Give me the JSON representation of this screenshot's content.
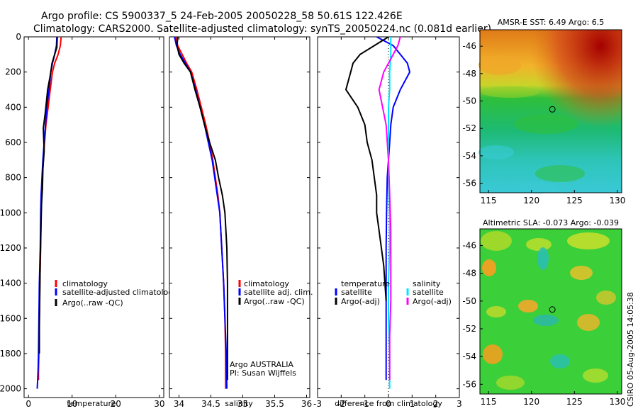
{
  "header": {
    "line1": "Argo profile: CS 5900337_5 24-Feb-2005 20050228_58 50.61S 122.426E",
    "line2": "Climatology: CARS2000. Satellite-adjusted climatology: synTS_20050224.nc (0.081d earlier)"
  },
  "chart_data": [
    {
      "type": "line",
      "name": "temperature-profile",
      "xlabel": "temperature",
      "ylabel": "",
      "xlim": [
        -1,
        31
      ],
      "ylim": [
        0,
        2050
      ],
      "y_reversed": true,
      "xticks": [
        0,
        10,
        20,
        30
      ],
      "yticks": [
        0,
        200,
        400,
        600,
        800,
        1000,
        1200,
        1400,
        1600,
        1800,
        2000
      ],
      "series": [
        {
          "name": "climatology",
          "color": "#ff0000",
          "x": [
            7.5,
            7.3,
            6.8,
            6.0,
            5.5,
            5.0,
            4.5,
            4.0,
            3.7,
            3.4,
            3.2,
            3.0,
            2.9,
            2.8,
            2.6,
            2.5,
            2.4,
            2.3,
            2.3
          ],
          "y": [
            0,
            50,
            100,
            150,
            200,
            300,
            400,
            500,
            600,
            700,
            800,
            900,
            1000,
            1200,
            1400,
            1600,
            1800,
            1900,
            1950
          ]
        },
        {
          "name": "satellite-adjusted climatology",
          "color": "#0000ff",
          "x": [
            6.5,
            6.4,
            6.0,
            5.5,
            5.1,
            4.7,
            4.2,
            3.9,
            3.6,
            3.3,
            3.1,
            2.9,
            2.8,
            2.7,
            2.5,
            2.4,
            2.3,
            2.2,
            2.1,
            2.0
          ],
          "y": [
            0,
            50,
            100,
            150,
            200,
            300,
            400,
            500,
            600,
            700,
            800,
            900,
            1000,
            1200,
            1400,
            1600,
            1800,
            1900,
            1950,
            2000
          ]
        },
        {
          "name": "Argo(..raw -QC)",
          "color": "#000000",
          "x": [
            6.6,
            6.5,
            6.0,
            5.4,
            5.0,
            4.4,
            3.9,
            3.4,
            3.6,
            3.3,
            3.2,
            3.0,
            2.9,
            2.7,
            2.6,
            2.5,
            2.5
          ],
          "y": [
            0,
            60,
            100,
            150,
            220,
            300,
            420,
            520,
            650,
            750,
            860,
            950,
            1050,
            1250,
            1450,
            1650,
            1800
          ]
        }
      ],
      "legend": {
        "position": "bottom-right",
        "entries": [
          "climatology",
          "satellite-adjusted climatology",
          "Argo(..raw -QC)"
        ]
      }
    },
    {
      "type": "line",
      "name": "salinity-profile",
      "xlabel": "salinity",
      "xlim": [
        33.85,
        36.05
      ],
      "ylim": [
        0,
        2050
      ],
      "y_reversed": true,
      "xticks": [
        34,
        34.5,
        35,
        35.5,
        36
      ],
      "xticklabels": [
        "34",
        "34.5",
        "35",
        "35.5",
        "36"
      ],
      "series": [
        {
          "name": "climatology",
          "color": "#ff0000",
          "x": [
            33.95,
            33.98,
            34.05,
            34.12,
            34.2,
            34.28,
            34.35,
            34.42,
            34.48,
            34.53,
            34.57,
            34.61,
            34.64,
            34.67,
            34.7,
            34.72,
            34.73,
            34.73
          ],
          "y": [
            0,
            50,
            100,
            150,
            200,
            300,
            400,
            500,
            600,
            700,
            800,
            900,
            1000,
            1200,
            1400,
            1600,
            1800,
            2000
          ]
        },
        {
          "name": "satellite adj. clim.",
          "color": "#0000ff",
          "x": [
            33.93,
            33.96,
            34.02,
            34.1,
            34.18,
            34.26,
            34.33,
            34.4,
            34.46,
            34.52,
            34.56,
            34.6,
            34.64,
            34.67,
            34.7,
            34.72,
            34.74,
            34.75
          ],
          "y": [
            0,
            50,
            100,
            150,
            200,
            300,
            400,
            500,
            600,
            700,
            800,
            900,
            1000,
            1200,
            1400,
            1600,
            1800,
            2000
          ]
        },
        {
          "name": "Argo(..raw -QC)",
          "color": "#000000",
          "x": [
            33.98,
            33.97,
            34.0,
            34.08,
            34.18,
            34.25,
            34.33,
            34.4,
            34.48,
            34.57,
            34.62,
            34.68,
            34.72,
            34.75,
            34.76,
            34.76,
            34.76,
            34.76
          ],
          "y": [
            0,
            50,
            100,
            150,
            200,
            300,
            400,
            500,
            600,
            700,
            800,
            900,
            1000,
            1200,
            1400,
            1600,
            1800,
            1950
          ]
        }
      ],
      "legend": {
        "position": "bottom-right",
        "entries": [
          "climatology",
          "satellite adj. clim.",
          "Argo(..raw -QC)"
        ]
      },
      "annotations": [
        "Argo AUSTRALIA",
        "PI: Susan Wijffels"
      ]
    },
    {
      "type": "line",
      "name": "difference-profile",
      "xlabel": "difference from climatology",
      "xlim": [
        -3,
        3
      ],
      "ylim": [
        0,
        2050
      ],
      "y_reversed": true,
      "xticks": [
        -3,
        -2,
        -1,
        0,
        1,
        2,
        3
      ],
      "series": [
        {
          "name": "temperature satellite",
          "color": "#0000ff",
          "x": [
            -0.5,
            0.2,
            0.5,
            0.8,
            0.9,
            0.5,
            0.2,
            0.1,
            0.05,
            0.0,
            -0.05,
            -0.08,
            -0.1,
            -0.1,
            -0.1,
            -0.1
          ],
          "y": [
            0,
            50,
            100,
            150,
            200,
            300,
            400,
            500,
            600,
            700,
            800,
            1000,
            1200,
            1400,
            1600,
            1950
          ]
        },
        {
          "name": "temperature Argo(-adj)",
          "color": "#000000",
          "x": [
            0.0,
            -0.6,
            -1.2,
            -1.5,
            -1.6,
            -1.8,
            -1.3,
            -1.0,
            -0.9,
            -0.7,
            -0.6,
            -0.5,
            -0.5,
            -0.4,
            -0.2,
            -0.1
          ],
          "y": [
            0,
            50,
            100,
            150,
            200,
            300,
            400,
            500,
            600,
            700,
            800,
            900,
            1000,
            1100,
            1300,
            1500
          ]
        },
        {
          "name": "salinity satellite",
          "color": "#00e5ff",
          "x": [
            0.1,
            0.1,
            0.05,
            0.05,
            0.0,
            0.0,
            0.0,
            0.05,
            0.05,
            0.0,
            0.0,
            0.05,
            0.05,
            0.05
          ],
          "y": [
            0,
            100,
            200,
            300,
            400,
            600,
            800,
            1000,
            1200,
            1400,
            1600,
            1800,
            1900,
            2000
          ]
        },
        {
          "name": "salinity Argo(-adj)",
          "color": "#ff00ff",
          "x": [
            0.5,
            0.4,
            0.2,
            -0.2,
            -0.4,
            -0.1,
            0.0,
            0.05,
            0.1,
            0.1,
            0.1,
            0.05,
            0.05
          ],
          "y": [
            0,
            50,
            100,
            200,
            300,
            500,
            700,
            900,
            1100,
            1300,
            1500,
            1700,
            1950
          ]
        }
      ],
      "legend": {
        "position": "bottom",
        "entries": [
          "temperature",
          "satellite",
          "Argo(-adj)",
          "salinity",
          "satellite",
          "Argo(-adj)"
        ]
      }
    },
    {
      "type": "heatmap",
      "name": "sst-map",
      "title": "AMSR-E SST: 6.49 Argo: 6.5",
      "xlim": [
        114,
        130.5
      ],
      "ylim": [
        -56.7,
        -44.8
      ],
      "xticks": [
        115,
        120,
        125,
        130
      ],
      "yticks": [
        -46,
        -48,
        -50,
        -52,
        -54,
        -56
      ],
      "marker": {
        "lon": 122.426,
        "lat": -50.61
      }
    },
    {
      "type": "heatmap",
      "name": "sla-map",
      "title": "Altimetric SLA: -0.073 Argo: -0.039",
      "xlim": [
        114,
        130.5
      ],
      "ylim": [
        -56.7,
        -44.8
      ],
      "xticks": [
        115,
        120,
        125,
        130
      ],
      "yticks": [
        -46,
        -48,
        -50,
        -52,
        -54,
        -56
      ],
      "marker": {
        "lon": 122.426,
        "lat": -50.61
      }
    }
  ],
  "legends": {
    "temp": [
      "climatology",
      "satellite-adjusted climatology",
      "Argo(..raw -QC)"
    ],
    "sal": [
      "climatology",
      "satellite adj. clim.",
      "Argo(..raw -QC)"
    ],
    "diff_left": [
      "temperature",
      "satellite",
      "Argo(-adj)"
    ],
    "diff_right": [
      "salinity",
      "satellite",
      "Argo(-adj)"
    ]
  },
  "credits": {
    "line1": "Argo AUSTRALIA",
    "line2": "PI: Susan Wijffels",
    "side": "CSIRO 05-Aug-2005 14:05:38"
  }
}
